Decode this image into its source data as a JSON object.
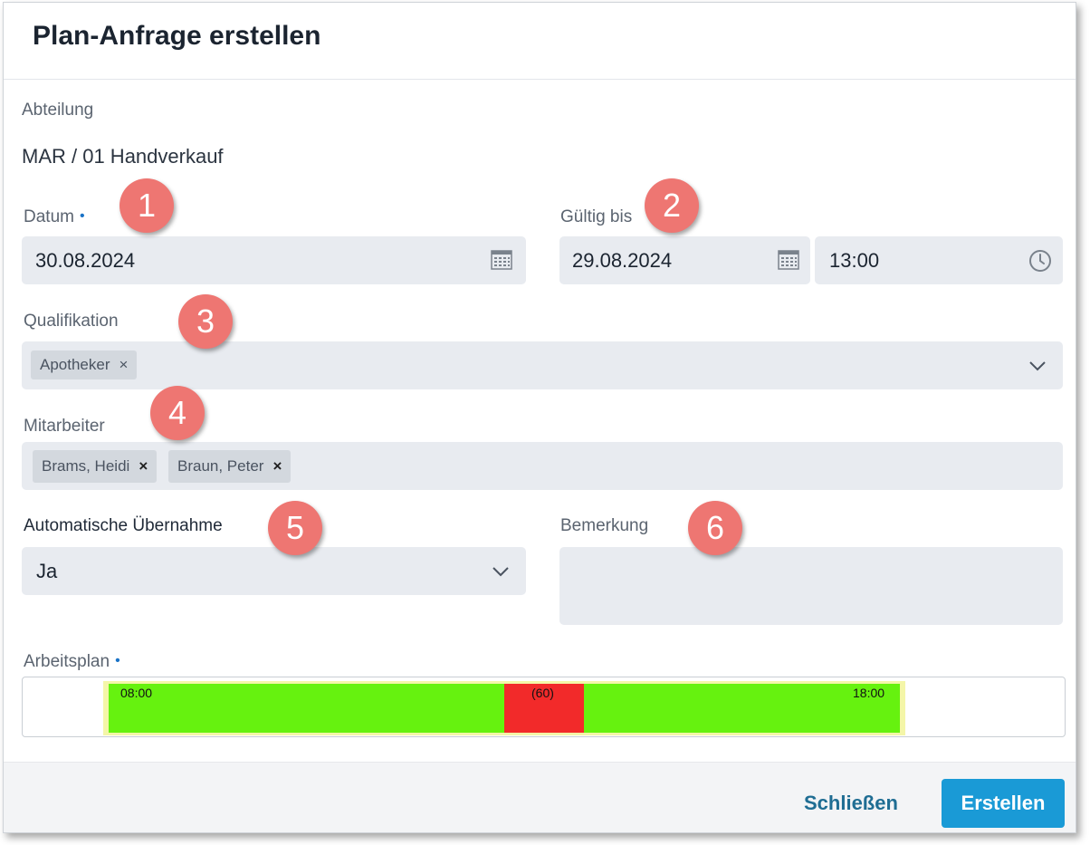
{
  "dialog": {
    "title": "Plan-Anfrage erstellen"
  },
  "abteilung": {
    "label": "Abteilung",
    "value": "MAR / 01 Handverkauf"
  },
  "datum": {
    "label": "Datum",
    "required_marker": "•",
    "value": "30.08.2024",
    "icon": "calendar-icon"
  },
  "gueltig_bis": {
    "label": "Gültig bis",
    "date_value": "29.08.2024",
    "time_value": "13:00",
    "date_icon": "calendar-icon",
    "time_icon": "clock-icon"
  },
  "qualifikation": {
    "label": "Qualifikation",
    "chips": [
      {
        "label": "Apotheker",
        "remove": "×"
      }
    ],
    "icon": "chevron-down-icon"
  },
  "mitarbeiter": {
    "label": "Mitarbeiter",
    "chips": [
      {
        "label": "Brams, Heidi",
        "remove": "×"
      },
      {
        "label": "Braun, Peter",
        "remove": "×"
      }
    ]
  },
  "automatische_uebernahme": {
    "label": "Automatische Übernahme",
    "value": "Ja",
    "icon": "chevron-down-icon"
  },
  "bemerkung": {
    "label": "Bemerkung",
    "value": ""
  },
  "arbeitsplan": {
    "label": "Arbeitsplan",
    "required_marker": "•",
    "start_time": "08:00",
    "break_label": "(60)",
    "end_time": "18:00",
    "colors": {
      "work": "#66f20f",
      "break": "#f22a2a",
      "frame": "#f4f6a8"
    }
  },
  "badges": [
    "1",
    "2",
    "3",
    "4",
    "5",
    "6"
  ],
  "footer": {
    "close_label": "Schließen",
    "create_label": "Erstellen",
    "accent": "#1a9ad6"
  }
}
